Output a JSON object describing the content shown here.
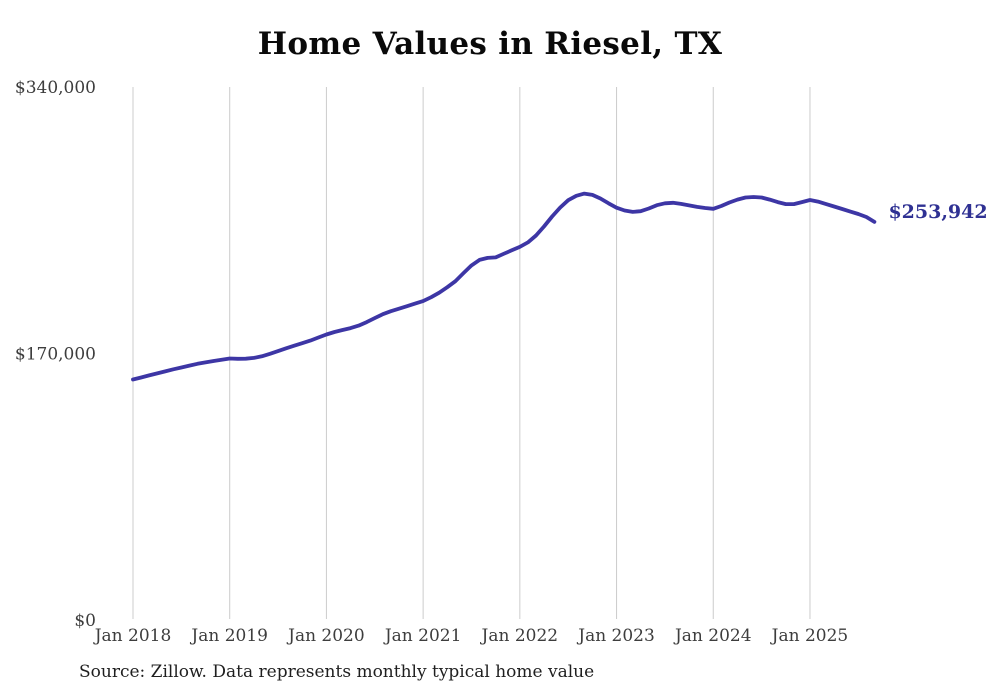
{
  "page": {
    "title": "Home Values in Riesel, TX",
    "source_note": "Source: Zillow. Data represents monthly typical home value",
    "latest_value_label": "$253,942"
  },
  "colors": {
    "line": "#3d36a5",
    "latest_label": "#2f3193",
    "gridline": "#cccccc",
    "axis_text": "#3d3d3d",
    "title_text": "#0a0a0a",
    "source_text": "#1f1f1f",
    "background": "#ffffff"
  },
  "chart_data": {
    "type": "line",
    "title": "Home Values in Riesel, TX",
    "xlabel": "",
    "ylabel": "",
    "ylim": [
      0,
      340000
    ],
    "y_ticks": [
      0,
      170000,
      340000
    ],
    "y_tick_labels": [
      "$0",
      "$170,000",
      "$340,000"
    ],
    "x_tick_labels": [
      "Jan 2018",
      "Jan 2019",
      "Jan 2020",
      "Jan 2021",
      "Jan 2022",
      "Jan 2023",
      "Jan 2024",
      "Jan 2025"
    ],
    "grid": "vertical-at-each-january",
    "legend": "none",
    "x_start": "2018-01",
    "x_end": "2025-09",
    "x_interval": "monthly",
    "latest_value": 253942,
    "series": [
      {
        "name": "Typical home value",
        "values": [
          153400,
          154700,
          156000,
          157300,
          158600,
          159900,
          161100,
          162300,
          163400,
          164300,
          165200,
          166000,
          166800,
          166600,
          166700,
          167200,
          168200,
          169800,
          171500,
          173300,
          175000,
          176600,
          178200,
          180200,
          182100,
          183700,
          185000,
          186200,
          187800,
          190000,
          192600,
          195100,
          197000,
          198600,
          200200,
          201800,
          203400,
          205900,
          208800,
          212300,
          216100,
          221200,
          226200,
          229700,
          231000,
          231300,
          233600,
          235800,
          238000,
          240900,
          245300,
          251000,
          257400,
          263100,
          267800,
          270600,
          272000,
          271200,
          268900,
          265800,
          263000,
          261200,
          260300,
          260800,
          262500,
          264600,
          265800,
          266100,
          265400,
          264500,
          263500,
          262800,
          262300,
          264100,
          266300,
          268200,
          269500,
          269800,
          269500,
          268200,
          266600,
          265300,
          265300,
          266600,
          267900,
          266900,
          265300,
          263800,
          262200,
          260500,
          259000,
          257100,
          253942
        ]
      }
    ]
  }
}
